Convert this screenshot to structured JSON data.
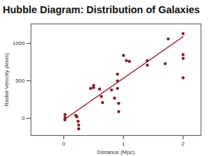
{
  "chart_data": {
    "type": "scatter",
    "title": "Hubble Diagram: Distribution of Galaxies",
    "x_label": "Distance (Mpc)",
    "y_label": "Radial Velocity (km/s)",
    "x": [
      0.02,
      0.02,
      0.02,
      0.2,
      0.22,
      0.24,
      0.25,
      0.25,
      0.45,
      0.5,
      0.5,
      0.6,
      0.63,
      0.65,
      0.8,
      0.85,
      0.9,
      0.9,
      0.9,
      0.92,
      0.92,
      1.0,
      1.05,
      1.1,
      1.4,
      1.4,
      1.7,
      1.75,
      2.0,
      2.0,
      2.0,
      2.0
    ],
    "values": [
      50,
      10,
      -20,
      40,
      20,
      -40,
      -90,
      -140,
      400,
      440,
      410,
      390,
      290,
      210,
      380,
      270,
      590,
      500,
      400,
      200,
      90,
      840,
      770,
      760,
      770,
      710,
      730,
      1060,
      1130,
      850,
      800,
      540
    ],
    "color": "#8b1a2b",
    "fit_line": {
      "x": [
        0,
        2
      ],
      "values": [
        -20,
        1090
      ],
      "color": "#a0343c"
    },
    "xlim": [
      -0.55,
      2.3
    ],
    "xticks": [
      0,
      1,
      2
    ],
    "ylim": [
      -230,
      1260
    ],
    "yticks": [
      0,
      500,
      1000
    ],
    "grid": false
  }
}
